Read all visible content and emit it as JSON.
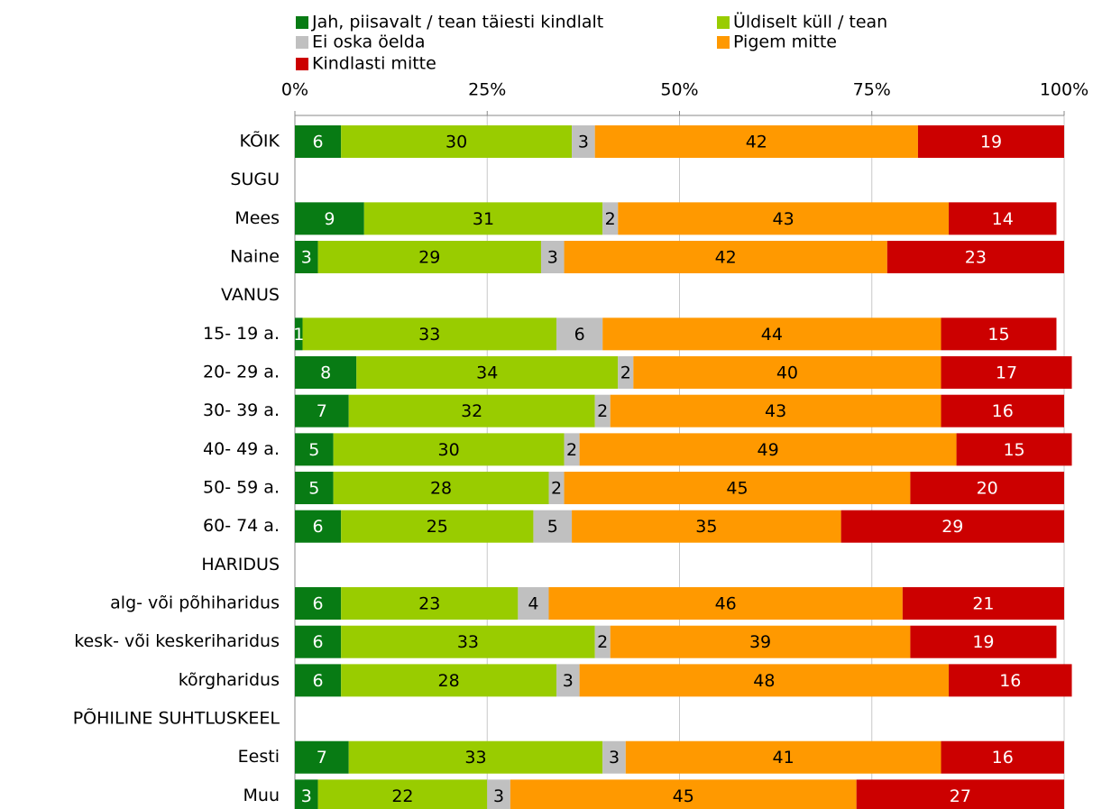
{
  "chart_data": {
    "type": "stacked_barh",
    "categories": [
      "KÕIK",
      "SUGU",
      "Mees",
      "Naine",
      "VANUS",
      "15- 19 a.",
      "20- 29 a.",
      "30- 39 a.",
      "40- 49 a.",
      "50- 59 a.",
      "60- 74 a.",
      "HARIDUS",
      "alg- või põhiharidus",
      "kesk- või keskeriharidus",
      "kõrgharidus",
      "PÕHILINE SUHTLUSKEEL",
      "Eesti",
      "Muu"
    ],
    "series": [
      {
        "name": "Jah, piisavalt / tean täiesti kindlalt",
        "color": "#087b14",
        "label_color": "#ffffff",
        "values": [
          6,
          null,
          9,
          3,
          null,
          1,
          8,
          7,
          5,
          5,
          6,
          null,
          6,
          6,
          6,
          null,
          7,
          3
        ]
      },
      {
        "name": "Üldiselt küll / tean",
        "color": "#99cc00",
        "label_color": "#000000",
        "values": [
          30,
          null,
          31,
          29,
          null,
          33,
          34,
          32,
          30,
          28,
          25,
          null,
          23,
          33,
          28,
          null,
          33,
          22
        ]
      },
      {
        "name": "Ei oska öelda",
        "color": "#c0c0c0",
        "label_color": "#000000",
        "values": [
          3,
          null,
          2,
          3,
          null,
          6,
          2,
          2,
          2,
          2,
          5,
          null,
          4,
          2,
          3,
          null,
          3,
          3
        ]
      },
      {
        "name": "Pigem mitte",
        "color": "#ff9900",
        "label_color": "#000000",
        "values": [
          42,
          null,
          43,
          42,
          null,
          44,
          40,
          43,
          49,
          45,
          35,
          null,
          46,
          39,
          48,
          null,
          41,
          45
        ]
      },
      {
        "name": "Kindlasti mitte",
        "color": "#cc0000",
        "label_color": "#ffffff",
        "values": [
          19,
          null,
          14,
          23,
          null,
          15,
          17,
          16,
          15,
          20,
          29,
          null,
          21,
          19,
          16,
          null,
          16,
          27
        ]
      }
    ],
    "xlim": [
      0,
      100
    ],
    "xticks": [
      {
        "value": 0,
        "label": "0%"
      },
      {
        "value": 25,
        "label": "25%"
      },
      {
        "value": 50,
        "label": "50%"
      },
      {
        "value": 75,
        "label": "75%"
      },
      {
        "value": 100,
        "label": "100%"
      }
    ],
    "grid": true,
    "legend": "top"
  }
}
